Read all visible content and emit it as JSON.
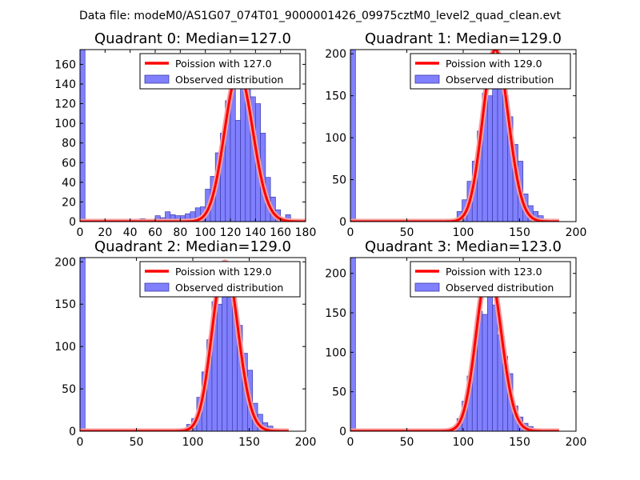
{
  "figure": {
    "suptitle": "Data file: modeM0/AS1G07_074T01_9000001426_09975cztM0_level2_quad_clean.evt"
  },
  "colors": {
    "hist_fill": "#8080ff",
    "hist_edge": "#3a3aa8",
    "poisson_line": "#ff0000",
    "poisson_glow": "#f5a0a0"
  },
  "chart_data": [
    {
      "type": "bar",
      "title": "Quadrant 0: Median=127.0",
      "median": 127.0,
      "xlim": [
        0,
        180
      ],
      "ylim": [
        0,
        175
      ],
      "xticks": [
        0,
        20,
        40,
        60,
        80,
        100,
        120,
        140,
        160,
        180
      ],
      "yticks": [
        0,
        20,
        40,
        60,
        80,
        100,
        120,
        140,
        160
      ],
      "bin_width": 4,
      "bins_x": [
        0,
        48,
        56,
        60,
        64,
        68,
        72,
        76,
        80,
        84,
        88,
        92,
        96,
        100,
        104,
        108,
        112,
        116,
        120,
        124,
        128,
        132,
        136,
        140,
        144,
        148,
        152,
        156,
        164
      ],
      "bins_y": [
        175,
        3,
        2,
        6,
        4,
        10,
        7,
        6,
        6,
        8,
        10,
        14,
        15,
        33,
        46,
        70,
        90,
        123,
        138,
        103,
        145,
        140,
        127,
        120,
        90,
        45,
        25,
        12,
        7
      ],
      "legend": [
        "Poission with 127.0",
        "Observed distribution"
      ]
    },
    {
      "type": "bar",
      "title": "Quadrant 1: Median=129.0",
      "median": 129.0,
      "xlim": [
        0,
        200
      ],
      "ylim": [
        0,
        205
      ],
      "xticks": [
        0,
        50,
        100,
        150,
        200
      ],
      "yticks": [
        0,
        50,
        100,
        150,
        200
      ],
      "bin_width": 4.5,
      "bins_x": [
        0,
        72,
        81,
        94.5,
        99,
        103.5,
        108,
        112.5,
        117,
        121.5,
        126,
        130.5,
        135,
        139.5,
        144,
        148.5,
        153,
        157.5,
        162,
        166.5,
        171,
        175.5
      ],
      "bins_y": [
        205,
        3,
        2,
        12,
        26,
        48,
        72,
        108,
        153,
        150,
        175,
        195,
        150,
        125,
        92,
        72,
        33,
        19,
        12,
        7,
        3,
        2
      ],
      "legend": [
        "Poission with 129.0",
        "Observed distribution"
      ]
    },
    {
      "type": "bar",
      "title": "Quadrant 2: Median=129.0",
      "median": 129.0,
      "xlim": [
        0,
        200
      ],
      "ylim": [
        0,
        205
      ],
      "xticks": [
        0,
        50,
        100,
        150,
        200
      ],
      "yticks": [
        0,
        50,
        100,
        150,
        200
      ],
      "bin_width": 4.5,
      "bins_x": [
        0,
        72,
        81,
        94.5,
        99,
        103.5,
        108,
        112.5,
        117,
        121.5,
        126,
        130.5,
        135,
        139.5,
        144,
        148.5,
        153,
        157.5,
        162,
        166.5,
        171
      ],
      "bins_y": [
        205,
        2,
        2,
        8,
        15,
        40,
        70,
        108,
        153,
        150,
        190,
        160,
        145,
        125,
        92,
        72,
        33,
        20,
        10,
        6,
        3
      ],
      "legend": [
        "Poission with 129.0",
        "Observed distribution"
      ]
    },
    {
      "type": "bar",
      "title": "Quadrant 3: Median=123.0",
      "median": 123.0,
      "xlim": [
        0,
        200
      ],
      "ylim": [
        0,
        220
      ],
      "xticks": [
        0,
        50,
        100,
        150,
        200
      ],
      "yticks": [
        0,
        50,
        100,
        150,
        200
      ],
      "bin_width": 4.5,
      "bins_x": [
        0,
        63,
        76.5,
        90,
        94.5,
        99,
        103.5,
        108,
        112.5,
        117,
        121.5,
        126,
        130.5,
        135,
        139.5,
        144,
        148.5,
        153,
        157.5,
        162
      ],
      "bins_y": [
        220,
        2,
        2,
        5,
        16,
        38,
        70,
        108,
        152,
        148,
        196,
        160,
        122,
        95,
        73,
        32,
        18,
        10,
        6,
        3
      ],
      "legend": [
        "Poission with 123.0",
        "Observed distribution"
      ]
    }
  ]
}
